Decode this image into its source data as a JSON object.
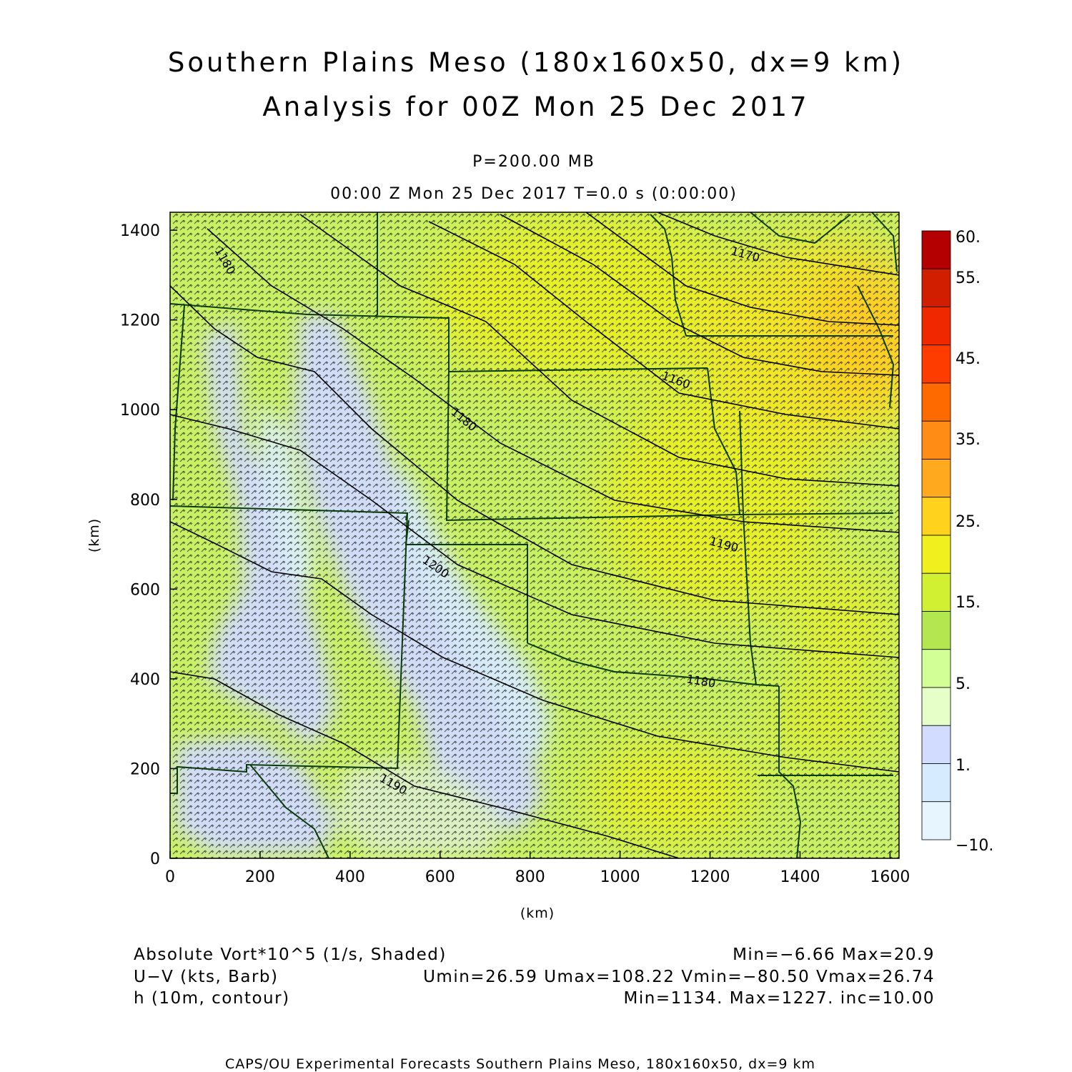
{
  "header": {
    "title_line1": "Southern Plains Meso (180x160x50, dx=9 km)",
    "title_line2": "Analysis for 00Z Mon 25 Dec 2017",
    "level": "P=200.00 MB",
    "time_line": "00:00 Z Mon 25 Dec 2017    T=0.0 s (0:00:00)"
  },
  "axes": {
    "x_ticks": [
      "0",
      "200",
      "400",
      "600",
      "800",
      "1000",
      "1200",
      "1400",
      "1600"
    ],
    "y_ticks": [
      "0",
      "200",
      "400",
      "600",
      "800",
      "1000",
      "1200",
      "1400"
    ],
    "x_label": "(km)",
    "y_label": "(km)",
    "x_range_km": [
      0,
      1620
    ],
    "y_range_km": [
      0,
      1440
    ]
  },
  "colorbar": {
    "labels": [
      "60.",
      "55.",
      "45.",
      "35.",
      "25.",
      "15.",
      "5.",
      "1.",
      "−10."
    ],
    "colors": [
      "#b40000",
      "#d21e00",
      "#f02800",
      "#ff3c00",
      "#ff6a00",
      "#ff8c14",
      "#ffaa1e",
      "#ffd21e",
      "#f0f01e",
      "#d2f032",
      "#b4e650",
      "#d2ff96",
      "#e6ffc8",
      "#d2dcff",
      "#d7ebff",
      "#e6f5ff"
    ]
  },
  "contours": {
    "labels": [
      "1180",
      "1170",
      "1160",
      "1180",
      "1190",
      "1200",
      "1180",
      "1190",
      "1200"
    ]
  },
  "footer": {
    "field1_name": "Absolute Vort*10^5 (1/s, Shaded)",
    "field1_stats": "Min=−6.66 Max=20.9",
    "field2_name": "U−V (kts, Barb)",
    "field2_stats": "Umin=26.59 Umax=108.22 Vmin=−80.50 Vmax=26.74",
    "field3_name": "h (10m, contour)",
    "field3_stats": "Min=1134. Max=1227. inc=10.00",
    "credit": "CAPS/OU Experimental Forecasts  Southern Plains Meso, 180x160x50, dx=9 km"
  },
  "colors": {
    "base_field": "#c8f064",
    "border": "#0a3c0a",
    "contour": "#000000"
  }
}
